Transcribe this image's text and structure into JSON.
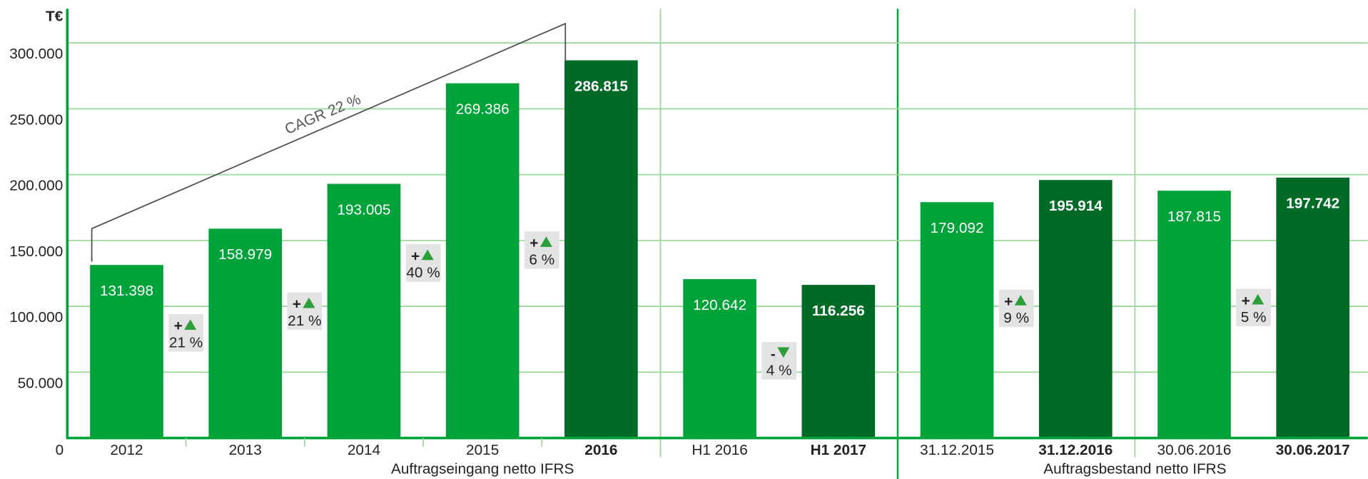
{
  "chart_data": {
    "type": "bar",
    "unit": "T€",
    "categories": [
      "2012",
      "2013",
      "2014",
      "2015",
      "2016",
      "H1 2016",
      "H1 2017",
      "31.12.2015",
      "31.12.2016",
      "30.06.2016",
      "30.06.2017"
    ],
    "values": [
      131398,
      158979,
      193005,
      269386,
      286815,
      120642,
      116256,
      179092,
      195914,
      187815,
      197742
    ],
    "value_labels": [
      "131.398",
      "158.979",
      "193.005",
      "269.386",
      "286.815",
      "120.642",
      "116.256",
      "179.092",
      "195.914",
      "187.815",
      "197.742"
    ],
    "colors": [
      "#00a33a",
      "#00a33a",
      "#00a33a",
      "#00a33a",
      "#006a27",
      "#00a33a",
      "#006a27",
      "#00a33a",
      "#006a27",
      "#00a33a",
      "#006a27"
    ],
    "highlight": [
      false,
      false,
      false,
      false,
      true,
      false,
      true,
      false,
      true,
      false,
      true
    ],
    "ylim": [
      0,
      326000
    ],
    "yticks": [
      0,
      {
        "value": 50000,
        "label": "50.000"
      },
      {
        "value": 100000,
        "label": "100.000"
      },
      {
        "value": 150000,
        "label": "150.000"
      },
      {
        "value": 200000,
        "label": "200.000"
      },
      {
        "value": 250000,
        "label": "250.000"
      },
      {
        "value": 300000,
        "label": "300.000"
      }
    ],
    "grid": true,
    "changes": [
      {
        "sign": "+",
        "text": "21 %"
      },
      {
        "sign": "+",
        "text": "21 %"
      },
      {
        "sign": "+",
        "text": "40 %"
      },
      {
        "sign": "+",
        "text": "6 %"
      },
      {
        "sign": "-",
        "text": "4 %"
      },
      {
        "sign": "+",
        "text": "9 %"
      },
      {
        "sign": "+",
        "text": "5 %"
      }
    ],
    "cagr_label": "CAGR 22 %",
    "groups": [
      "Auftragseingang netto IFRS",
      "Auftragsbestand netto IFRS"
    ]
  }
}
